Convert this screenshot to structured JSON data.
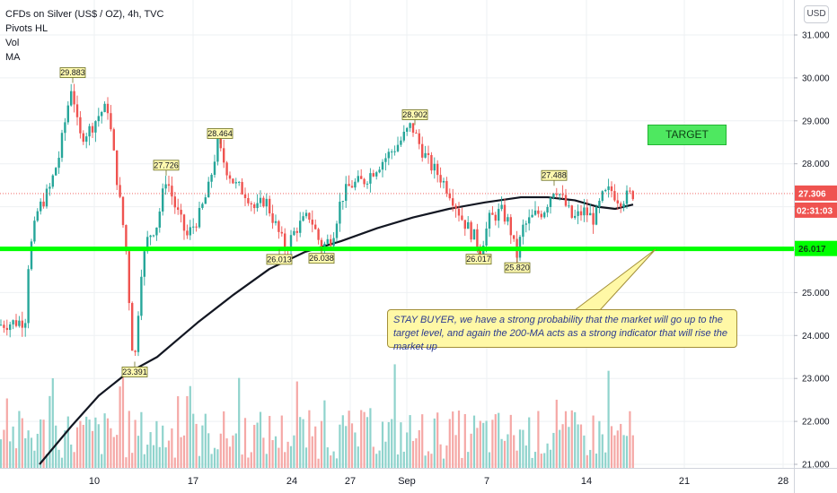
{
  "legend": {
    "title": "CFDs on Silver (US$ / OZ), 4h, TVC",
    "indicators": [
      "Pivots HL",
      "Vol",
      "MA"
    ]
  },
  "currency_button": "USD",
  "target_label": "TARGET",
  "note_text": "STAY BUYER, we have a strong probability that the market will go up to the target level, and again the 200-MA acts as a strong indicator that will rise the market up",
  "colors": {
    "up": "#26a69a",
    "down": "#ef5350",
    "vol_up": "#8fd3cc",
    "vol_down": "#f5a8a6",
    "ma": "#131722",
    "support_line": "#00ff00",
    "target_fill": "#4ee860",
    "note_fill": "#fff8a6",
    "price_tag": "#ef5350"
  },
  "chart_data": {
    "type": "candlestick",
    "timeframe": "4h",
    "ylim": [
      21.0,
      31.4
    ],
    "y_ticks": [
      "31.000",
      "30.000",
      "29.000",
      "28.000",
      "27.000",
      "26.000",
      "25.000",
      "24.000",
      "23.000",
      "22.000",
      "21.000"
    ],
    "x_ticks": [
      "10",
      "17",
      "24",
      "27",
      "Sep",
      "7",
      "14",
      "21",
      "28"
    ],
    "current_price": "27.306",
    "countdown": "02:31:03",
    "support_level": "26.017",
    "pivots": [
      {
        "label": "29.883",
        "kind": "high"
      },
      {
        "label": "23.391",
        "kind": "low"
      },
      {
        "label": "27.726",
        "kind": "high"
      },
      {
        "label": "28.464",
        "kind": "high"
      },
      {
        "label": "26.013",
        "kind": "low"
      },
      {
        "label": "26.038",
        "kind": "low"
      },
      {
        "label": "28.902",
        "kind": "high"
      },
      {
        "label": "26.017",
        "kind": "low"
      },
      {
        "label": "25.820",
        "kind": "low"
      },
      {
        "label": "27.488",
        "kind": "high"
      }
    ],
    "price_path": [
      [
        0,
        24.25
      ],
      [
        28,
        24.35
      ],
      [
        32,
        25.8
      ],
      [
        42,
        26.9
      ],
      [
        55,
        27.4
      ],
      [
        66,
        28.2
      ],
      [
        80,
        29.88
      ],
      [
        88,
        28.6
      ],
      [
        100,
        28.8
      ],
      [
        112,
        29.2
      ],
      [
        120,
        29.3
      ],
      [
        128,
        28.0
      ],
      [
        140,
        26.1
      ],
      [
        147,
        23.8
      ],
      [
        150,
        23.39
      ],
      [
        157,
        25.5
      ],
      [
        165,
        26.3
      ],
      [
        175,
        26.6
      ],
      [
        185,
        27.7
      ],
      [
        195,
        27.0
      ],
      [
        208,
        26.3
      ],
      [
        222,
        26.8
      ],
      [
        232,
        27.4
      ],
      [
        242,
        28.46
      ],
      [
        252,
        27.9
      ],
      [
        262,
        27.5
      ],
      [
        275,
        27.3
      ],
      [
        285,
        26.9
      ],
      [
        295,
        27.2
      ],
      [
        310,
        26.4
      ],
      [
        318,
        26.01
      ],
      [
        330,
        26.5
      ],
      [
        345,
        26.8
      ],
      [
        358,
        26.04
      ],
      [
        370,
        26.3
      ],
      [
        380,
        27.2
      ],
      [
        390,
        27.5
      ],
      [
        405,
        27.6
      ],
      [
        418,
        27.9
      ],
      [
        432,
        28.2
      ],
      [
        445,
        28.5
      ],
      [
        458,
        28.9
      ],
      [
        468,
        28.4
      ],
      [
        478,
        28.0
      ],
      [
        490,
        27.7
      ],
      [
        502,
        27.3
      ],
      [
        515,
        26.7
      ],
      [
        528,
        26.3
      ],
      [
        535,
        26.02
      ],
      [
        545,
        26.7
      ],
      [
        558,
        26.9
      ],
      [
        567,
        26.6
      ],
      [
        575,
        25.82
      ],
      [
        582,
        26.5
      ],
      [
        595,
        26.8
      ],
      [
        605,
        26.9
      ],
      [
        618,
        27.49
      ],
      [
        628,
        27.1
      ],
      [
        638,
        26.7
      ],
      [
        650,
        26.9
      ],
      [
        662,
        26.7
      ],
      [
        670,
        27.2
      ],
      [
        680,
        27.4
      ],
      [
        690,
        27.15
      ],
      [
        705,
        27.31
      ]
    ],
    "ma_path": [
      [
        44,
        21.0
      ],
      [
        80,
        21.9
      ],
      [
        110,
        22.6
      ],
      [
        140,
        23.1
      ],
      [
        175,
        23.5
      ],
      [
        220,
        24.3
      ],
      [
        260,
        24.95
      ],
      [
        300,
        25.55
      ],
      [
        340,
        25.95
      ],
      [
        380,
        26.2
      ],
      [
        420,
        26.5
      ],
      [
        460,
        26.75
      ],
      [
        500,
        26.95
      ],
      [
        540,
        27.1
      ],
      [
        580,
        27.22
      ],
      [
        610,
        27.22
      ],
      [
        640,
        27.15
      ],
      [
        665,
        27.0
      ],
      [
        685,
        26.95
      ],
      [
        705,
        27.05
      ]
    ]
  }
}
